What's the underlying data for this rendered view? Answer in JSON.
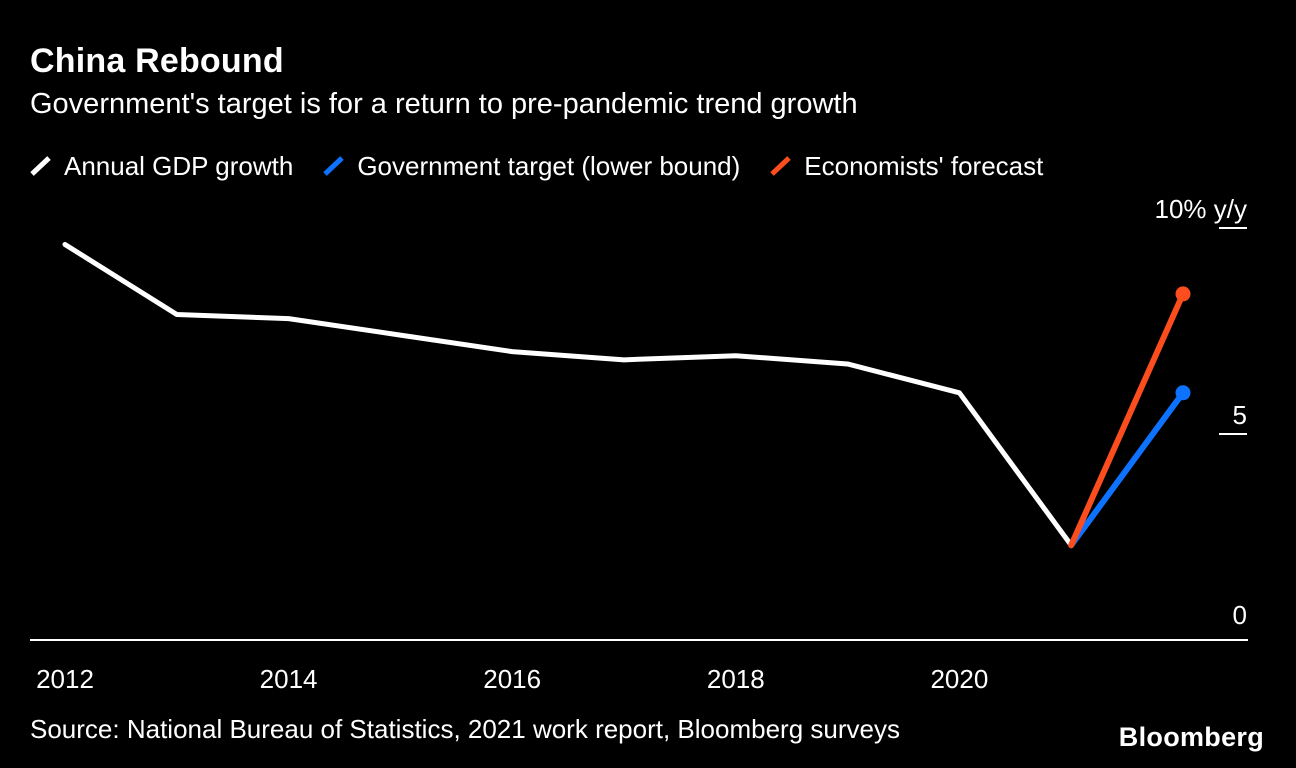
{
  "footer": {
    "source": "Source: National Bureau of Statistics, 2021 work report, Bloomberg surveys",
    "logo": "Bloomberg"
  },
  "colors": {
    "background": "#000000",
    "text": "#ffffff",
    "gdp_line": "#ffffff",
    "target_line": "#0d73ff",
    "forecast_line": "#fb4d1e"
  },
  "chart_data": {
    "type": "line",
    "title": "China Rebound",
    "subtitle": "Government's target is for a return to pre-pandemic trend growth",
    "ylim": [
      0,
      10
    ],
    "grid": false,
    "legend_position": "top",
    "yticks": [
      {
        "value": 10,
        "label": "10% y/y"
      },
      {
        "value": 5,
        "label": "5"
      },
      {
        "value": 0,
        "label": "0"
      }
    ],
    "xticks": [
      2012,
      2014,
      2016,
      2018,
      2020
    ],
    "series": [
      {
        "name": "Annual GDP growth",
        "color": "#ffffff",
        "years": [
          2011,
          2012,
          2013,
          2014,
          2015,
          2016,
          2017,
          2018,
          2019,
          2020
        ],
        "values": [
          9.6,
          7.9,
          7.8,
          7.4,
          7.0,
          6.8,
          6.9,
          6.7,
          6.0,
          2.3
        ],
        "end_dot": false
      },
      {
        "name": "Government target (lower bound)",
        "color": "#0d73ff",
        "years": [
          2020,
          2021
        ],
        "values": [
          2.3,
          6.0
        ],
        "end_dot": true
      },
      {
        "name": "Economists' forecast",
        "color": "#fb4d1e",
        "years": [
          2020,
          2021
        ],
        "values": [
          2.3,
          8.4
        ],
        "end_dot": true
      }
    ]
  }
}
